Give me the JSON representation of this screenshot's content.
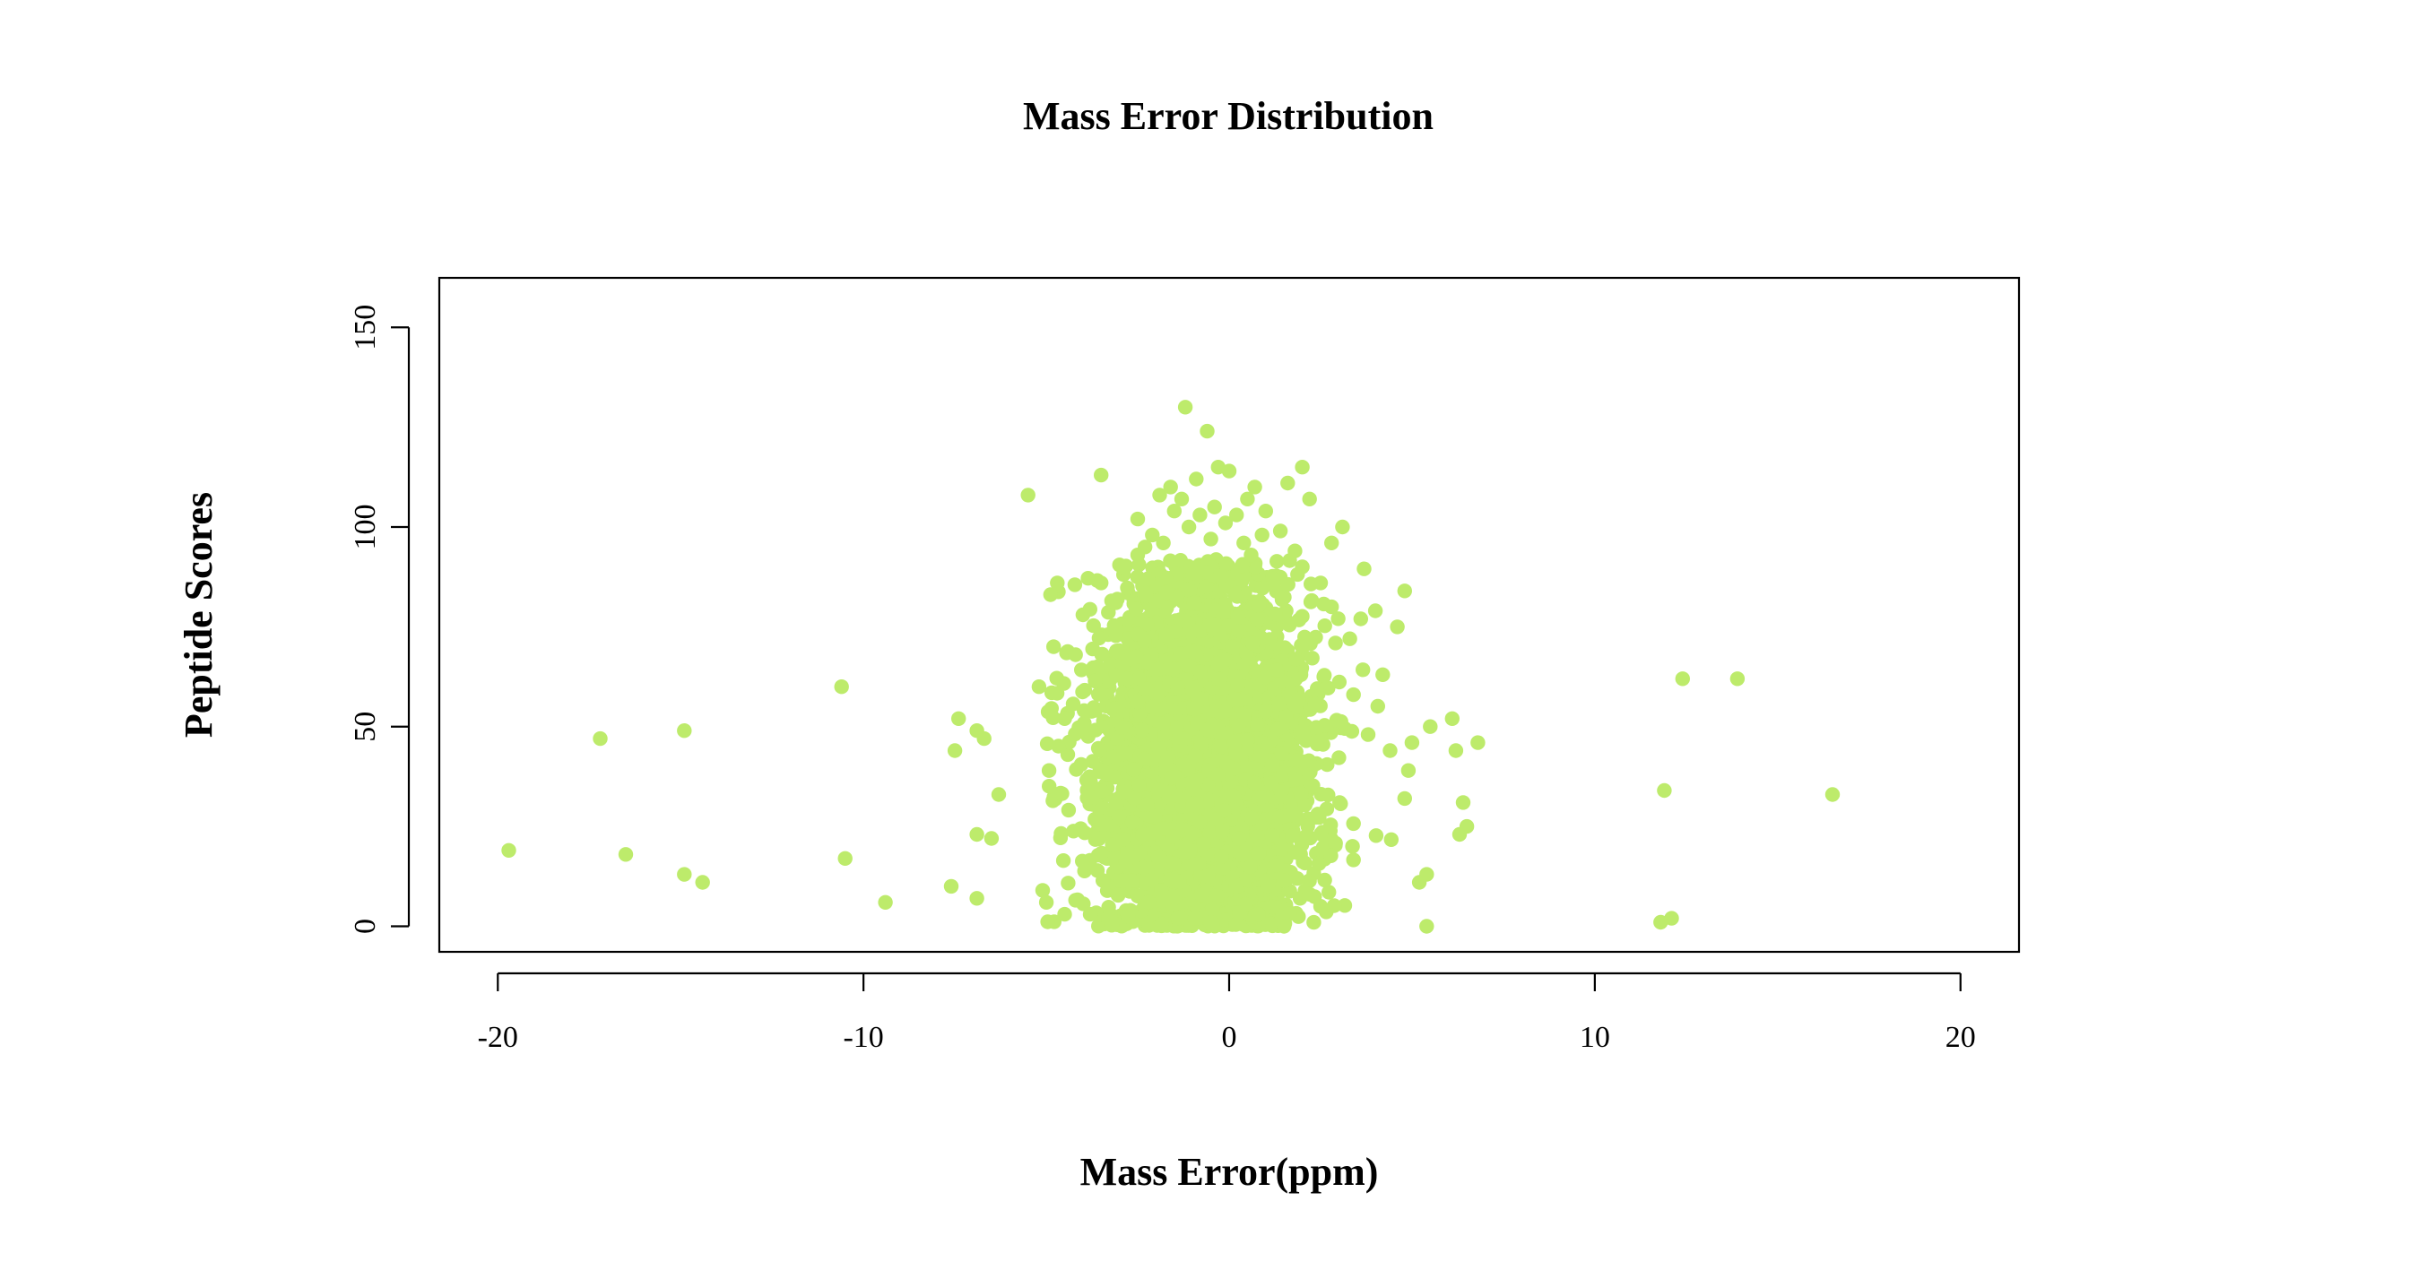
{
  "chart_data": {
    "type": "scatter",
    "title": "Mass Error Distribution",
    "xlabel": "Mass Error(ppm)",
    "ylabel": "Peptide Scores",
    "xlim": [
      -21.6,
      21.6
    ],
    "ylim": [
      -6.4,
      162.4
    ],
    "x_ticks": [
      -20,
      -10,
      0,
      10,
      20
    ],
    "x_tick_labels": [
      "-20",
      "-10",
      "0",
      "10",
      "20"
    ],
    "y_ticks": [
      0,
      50,
      100,
      150
    ],
    "y_tick_labels": [
      "0",
      "50",
      "100",
      "150"
    ],
    "grid": false,
    "legend": "none",
    "point_color": "#bdeb6b",
    "series": [
      {
        "points": [
          [
            -19.7,
            19
          ],
          [
            -17.2,
            47
          ],
          [
            -16.5,
            18
          ],
          [
            -14.9,
            49
          ],
          [
            -14.9,
            13
          ],
          [
            -14.4,
            11
          ],
          [
            -10.6,
            60
          ],
          [
            -10.5,
            17
          ],
          [
            -9.4,
            6
          ],
          [
            -7.6,
            10
          ],
          [
            -7.5,
            44
          ],
          [
            -7.4,
            52
          ],
          [
            -6.9,
            7
          ],
          [
            -6.9,
            23
          ],
          [
            -6.9,
            49
          ],
          [
            -6.7,
            47
          ],
          [
            -6.5,
            22
          ],
          [
            -6.3,
            33
          ],
          [
            -5.5,
            108
          ],
          [
            -5.2,
            60
          ],
          [
            -5.1,
            9
          ],
          [
            -5.0,
            6
          ],
          [
            -4.8,
            70
          ],
          [
            -4.7,
            86
          ],
          [
            -4.5,
            52
          ],
          [
            -4.5,
            3
          ],
          [
            -4.2,
            68
          ],
          [
            -4.0,
            78
          ],
          [
            -3.8,
            3
          ],
          [
            -3.6,
            65
          ],
          [
            -3.5,
            113
          ],
          [
            -3.5,
            86
          ],
          [
            -3.3,
            2
          ],
          [
            -3.1,
            81
          ],
          [
            -2.9,
            90
          ],
          [
            -2.7,
            4
          ],
          [
            -2.5,
            93
          ],
          [
            -2.5,
            102
          ],
          [
            -2.3,
            95
          ],
          [
            -2.1,
            98
          ],
          [
            -1.9,
            108
          ],
          [
            -1.8,
            96
          ],
          [
            -1.6,
            110
          ],
          [
            -1.5,
            104
          ],
          [
            -1.3,
            107
          ],
          [
            -1.2,
            130
          ],
          [
            -1.1,
            100
          ],
          [
            -0.9,
            112
          ],
          [
            -0.8,
            103
          ],
          [
            -0.6,
            124
          ],
          [
            -0.5,
            97
          ],
          [
            -0.4,
            105
          ],
          [
            -0.3,
            115
          ],
          [
            -0.1,
            101
          ],
          [
            0.0,
            114
          ],
          [
            0.2,
            103
          ],
          [
            0.4,
            96
          ],
          [
            0.5,
            107
          ],
          [
            0.6,
            93
          ],
          [
            0.7,
            110
          ],
          [
            0.9,
            98
          ],
          [
            1.0,
            104
          ],
          [
            1.2,
            87
          ],
          [
            1.4,
            99
          ],
          [
            1.6,
            111
          ],
          [
            1.8,
            94
          ],
          [
            2.0,
            115
          ],
          [
            2.0,
            90
          ],
          [
            2.2,
            107
          ],
          [
            2.5,
            86
          ],
          [
            2.8,
            80
          ],
          [
            2.8,
            96
          ],
          [
            3.1,
            100
          ],
          [
            3.3,
            72
          ],
          [
            3.4,
            58
          ],
          [
            3.6,
            77
          ],
          [
            3.8,
            48
          ],
          [
            4.0,
            79
          ],
          [
            4.2,
            63
          ],
          [
            4.4,
            44
          ],
          [
            4.6,
            75
          ],
          [
            4.8,
            84
          ],
          [
            4.8,
            32
          ],
          [
            4.9,
            39
          ],
          [
            5.0,
            46
          ],
          [
            5.2,
            11
          ],
          [
            5.4,
            13
          ],
          [
            5.4,
            0
          ],
          [
            5.5,
            50
          ],
          [
            6.1,
            52
          ],
          [
            6.2,
            44
          ],
          [
            6.3,
            23
          ],
          [
            6.4,
            31
          ],
          [
            6.5,
            25
          ],
          [
            6.8,
            46
          ],
          [
            2.5,
            5
          ],
          [
            1.5,
            0
          ],
          [
            -0.5,
            1
          ],
          [
            -1.4,
            2
          ],
          [
            0.8,
            3
          ],
          [
            -2.2,
            6
          ],
          [
            2.2,
            8
          ],
          [
            11.8,
            1
          ],
          [
            11.9,
            34
          ],
          [
            12.1,
            2
          ],
          [
            12.4,
            62
          ],
          [
            13.9,
            62
          ],
          [
            16.5,
            33
          ]
        ]
      }
    ],
    "dense_cluster": {
      "x_mean": -0.7,
      "x_sd": 1.35,
      "y_mean": 40,
      "y_sd": 22,
      "y_min": 0,
      "y_max": 92,
      "x_min": -5,
      "x_max": 4.5,
      "count": 4500
    }
  }
}
